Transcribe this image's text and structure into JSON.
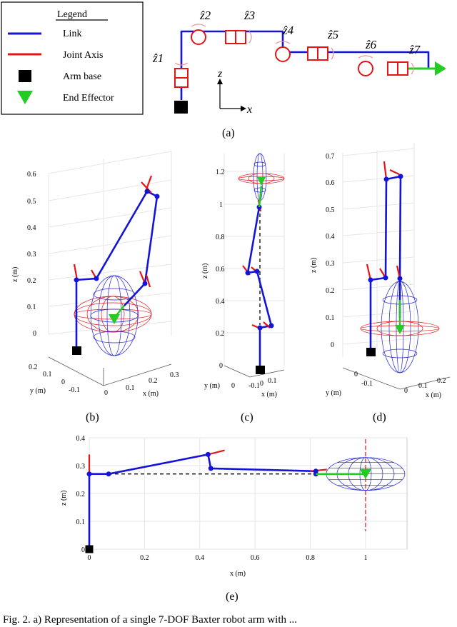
{
  "legend": {
    "title": "Legend",
    "items": [
      {
        "label": "Link",
        "color": "#1414d6",
        "symbol": "line"
      },
      {
        "label": "Joint Axis",
        "color": "#e51515",
        "symbol": "line"
      },
      {
        "label": "Arm base",
        "color": "#000000",
        "symbol": "square"
      },
      {
        "label": "End Effector",
        "color": "#22cc22",
        "symbol": "triangle"
      }
    ]
  },
  "schematic": {
    "joint_labels": [
      "ẑ1",
      "ẑ2",
      "ẑ3",
      "ẑ4",
      "ẑ5",
      "ẑ6",
      "ẑ7"
    ],
    "axis_z": "z",
    "axis_x": "x"
  },
  "panel_labels": [
    "(a)",
    "(b)",
    "(c)",
    "(d)",
    "(e)"
  ],
  "plot_b": {
    "z_ticks": [
      "0",
      "0.1",
      "0.2",
      "0.3",
      "0.4",
      "0.5",
      "0.6"
    ],
    "x_ticks": [
      "0",
      "0.1",
      "0.2",
      "0.3"
    ],
    "y_ticks": [
      "0.2",
      "0.1",
      "0",
      "-0.1"
    ],
    "zlabel": "z (m)",
    "xlabel": "x (m)",
    "ylabel": "y (m)"
  },
  "plot_c": {
    "z_ticks": [
      "0",
      "0.2",
      "0.4",
      "0.6",
      "0.8",
      "1",
      "1.2"
    ],
    "x_ticks": [
      "-0.1",
      "0",
      "0.1"
    ],
    "y_ticks": [
      "0"
    ],
    "zlabel": "z (m)",
    "xlabel": "x (m)",
    "ylabel": "y (m)"
  },
  "plot_d": {
    "z_ticks": [
      "0",
      "0.1",
      "0.2",
      "0.3",
      "0.4",
      "0.5",
      "0.6",
      "0.7"
    ],
    "x_ticks": [
      "0",
      "0.1",
      "0.2"
    ],
    "y_ticks": [
      "0",
      "-0.1"
    ],
    "zlabel": "z (m)",
    "xlabel": "x (m)",
    "ylabel": "y (m)"
  },
  "chart_data": {
    "type": "line",
    "title": "",
    "xlabel": "x (m)",
    "ylabel": "z (m)",
    "xlim": [
      0,
      1.15
    ],
    "ylim": [
      0,
      0.4
    ],
    "x_ticks": [
      "0",
      "0.2",
      "0.4",
      "0.6",
      "0.8",
      "1"
    ],
    "y_ticks": [
      "0",
      "0.1",
      "0.2",
      "0.3",
      "0.4"
    ],
    "series": [
      {
        "x": [
          0,
          0,
          0.07,
          0.43,
          0.44,
          0.82,
          0.82
        ],
        "y": [
          0,
          0.27,
          0.27,
          0.34,
          0.29,
          0.28,
          0.27
        ]
      }
    ],
    "base": {
      "x": 0,
      "y": 0
    },
    "end_effector": {
      "x": 1.0,
      "y": 0.27
    },
    "reference_line_z": 0.27
  },
  "caption": "Fig. 2.   a) Representation of a single 7-DOF Baxter robot arm with ...",
  "colors": {
    "link": "#1414d6",
    "joint_axis": "#e51515",
    "end_effector": "#22cc22",
    "base": "#000000"
  }
}
